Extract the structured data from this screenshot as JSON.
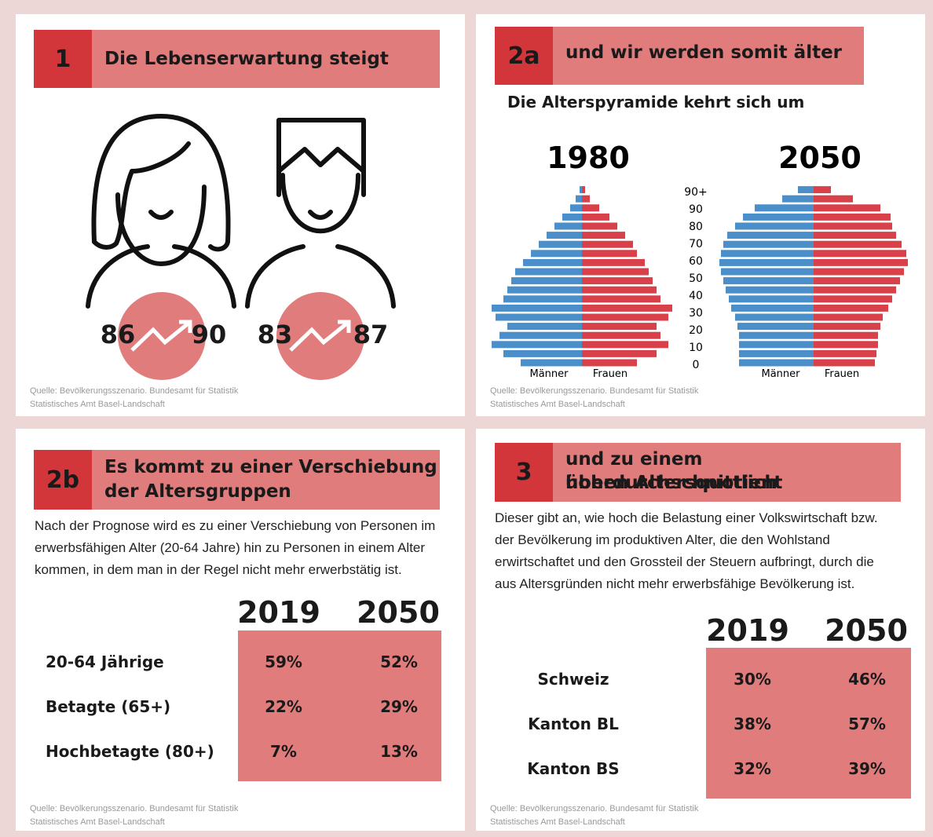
{
  "panel1": {
    "number": "1",
    "title": "Die Lebenserwartung steigt",
    "women": {
      "from": "86",
      "to": "90"
    },
    "men": {
      "from": "83",
      "to": "87"
    },
    "source": [
      "Quelle: Bevölkerungsszenario. Bundesamt für Statistik",
      "Statistisches Amt Basel-Landschaft"
    ]
  },
  "panel2a": {
    "number": "2a",
    "title": "und wir werden somit älter",
    "subtitle": "Die Alterspyramide kehrt sich um",
    "age_labels": [
      "0",
      "10",
      "20",
      "30",
      "40",
      "50",
      "60",
      "70",
      "80",
      "90",
      "90+"
    ],
    "men_label": "Männer",
    "women_label": "Frauen",
    "men_color": "#4a8fc9",
    "women_color": "#d8414a",
    "pyramids": [
      {
        "year": "1980",
        "men": [
          78,
          100,
          115,
          105,
          95,
          110,
          115,
          100,
          95,
          90,
          85,
          75,
          65,
          55,
          45,
          35,
          25,
          15,
          8,
          3
        ],
        "women": [
          70,
          95,
          110,
          100,
          95,
          110,
          115,
          100,
          95,
          90,
          85,
          80,
          70,
          65,
          55,
          45,
          35,
          22,
          10,
          4
        ]
      },
      {
        "year": "2050",
        "men": [
          95,
          95,
          95,
          95,
          97,
          100,
          105,
          108,
          112,
          115,
          118,
          120,
          118,
          115,
          110,
          100,
          90,
          75,
          40,
          20
        ],
        "women": [
          78,
          80,
          82,
          82,
          85,
          88,
          95,
          100,
          105,
          110,
          115,
          120,
          118,
          112,
          105,
          100,
          98,
          85,
          50,
          22
        ]
      }
    ],
    "source": [
      "Quelle: Bevölkerungsszenario. Bundesamt für Statistik",
      "Statistisches Amt Basel-Landschaft"
    ]
  },
  "panel2b": {
    "number": "2b",
    "title": [
      "Es kommt zu einer Verschiebung",
      "der Altersgruppen"
    ],
    "text": "Nach der Prognose wird es zu einer Verschiebung von Personen im erwerbsfähigen Alter (20-64 Jahre) hin zu Personen in einem Alter kommen, in dem man in der Regel nicht mehr erwerbstätig ist.",
    "table": {
      "columns": [
        "2019",
        "2050"
      ],
      "rows": [
        [
          "20-64 Jährige",
          "59%",
          "52%"
        ],
        [
          "Betagte (65+)",
          "22%",
          "29%"
        ],
        [
          "Hochbetagte (80+)",
          "7%",
          "13%"
        ]
      ]
    },
    "source": [
      "Quelle: Bevölkerungsszenario. Bundesamt für Statistik",
      "Statistisches Amt Basel-Landschaft"
    ]
  },
  "panel3": {
    "number": "3",
    "title": [
      "und zu einem überdurchschnittlich",
      "hohen Altersquotient"
    ],
    "text": "Dieser gibt an, wie hoch die Belastung einer Volkswirtschaft bzw. der Bevölkerung im produktiven Alter, die den Wohlstand erwirtschaftet und den Grossteil der Steuern aufbringt, durch die aus Altersgründen nicht mehr erwerbsfähige Bevölkerung ist.",
    "table": {
      "columns": [
        "2019",
        "2050"
      ],
      "rows": [
        [
          "Schweiz",
          "30%",
          "46%"
        ],
        [
          "Kanton BL",
          "38%",
          "57%"
        ],
        [
          "Kanton BS",
          "32%",
          "39%"
        ]
      ]
    },
    "source": [
      "Quelle: Bevölkerungsszenario. Bundesamt für Statistik",
      "Statistisches Amt Basel-Landschaft"
    ]
  }
}
